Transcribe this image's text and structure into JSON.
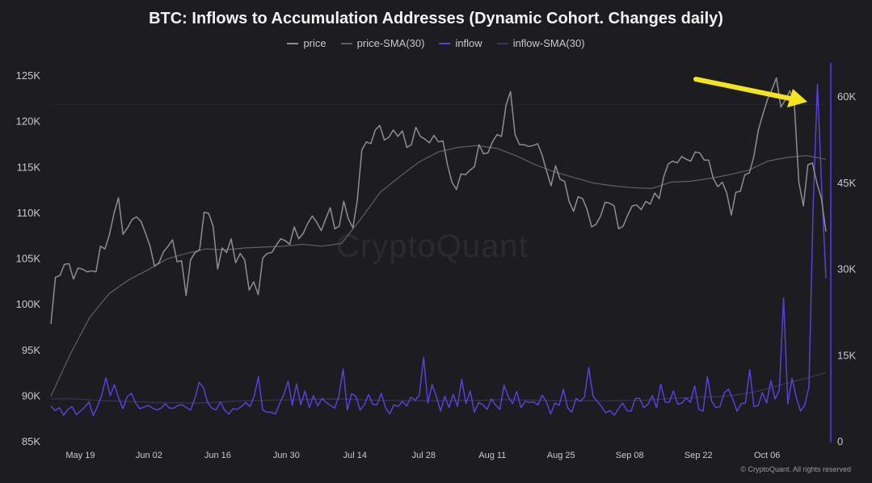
{
  "chart_data": {
    "type": "line",
    "title": "BTC: Inflows to Accumulation Addresses (Dynamic Cohort. Changes daily)",
    "legend": [
      "price",
      "price-SMA(30)",
      "inflow",
      "inflow-SMA(30)"
    ],
    "x_ticks": [
      "May 19",
      "Jun 02",
      "Jun 16",
      "Jun 30",
      "Jul 14",
      "Jul 28",
      "Aug 11",
      "Aug 25",
      "Sep 08",
      "Sep 22",
      "Oct 06"
    ],
    "x_range": [
      "2025-05-13",
      "2025-10-18"
    ],
    "y_left": {
      "ticks": [
        "125K",
        "120K",
        "115K",
        "110K",
        "105K",
        "100K",
        "95K",
        "90K",
        "85K"
      ],
      "min": 85000,
      "max": 125000
    },
    "y_right": {
      "ticks": [
        "60K",
        "45K",
        "30K",
        "15K",
        "0"
      ],
      "min": 0,
      "max": 60000
    },
    "series": [
      {
        "name": "price",
        "axis": "left",
        "color": "#8d8d92",
        "values": [
          97800,
          102900,
          103100,
          104300,
          104400,
          102700,
          103900,
          103800,
          103500,
          103600,
          103500,
          106300,
          106000,
          107600,
          109900,
          111600,
          107600,
          108300,
          109200,
          109500,
          109000,
          107700,
          106300,
          104100,
          104500,
          105700,
          106300,
          107000,
          104600,
          104700,
          100900,
          104800,
          105600,
          105900,
          110000,
          109900,
          108500,
          103800,
          106100,
          105600,
          107100,
          104500,
          105500,
          104800,
          101500,
          102400,
          101000,
          105000,
          105500,
          105600,
          106400,
          107100,
          106900,
          106500,
          108400,
          107100,
          107700,
          108800,
          109600,
          108900,
          108000,
          109300,
          110500,
          108200,
          108500,
          111200,
          109300,
          108300,
          111300,
          116800,
          117700,
          117500,
          119000,
          119500,
          117900,
          118200,
          119000,
          118300,
          118900,
          117100,
          117400,
          119300,
          118300,
          118000,
          117600,
          118400,
          117700,
          117800,
          115200,
          113300,
          112500,
          114200,
          114100,
          114600,
          115000,
          117400,
          116400,
          116500,
          117700,
          118500,
          118300,
          121700,
          123200,
          118500,
          117400,
          117400,
          117200,
          117300,
          117500,
          116300,
          114500,
          112900,
          115100,
          113600,
          113400,
          111200,
          110100,
          111700,
          111500,
          110300,
          108400,
          108700,
          109600,
          111100,
          111000,
          110700,
          108200,
          108500,
          109700,
          110700,
          110800,
          110300,
          111200,
          110900,
          112100,
          111500,
          113900,
          115300,
          115600,
          115400,
          116100,
          115800,
          115600,
          116600,
          116500,
          115700,
          115700,
          113700,
          112800,
          113300,
          112100,
          109700,
          112200,
          112300,
          114100,
          114300,
          116100,
          119000,
          120700,
          122300,
          123400,
          124700,
          121500,
          122300,
          123300,
          121700,
          113300,
          110700,
          115200,
          115400,
          113200,
          111500,
          107900
        ]
      },
      {
        "name": "price-SMA(30)",
        "axis": "left",
        "color": "#5f5f65",
        "values": [
          89900,
          94500,
          98500,
          101100,
          102600,
          103700,
          104900,
          105500,
          106000,
          105900,
          106100,
          106200,
          106300,
          106500,
          106300,
          106600,
          109300,
          112200,
          113900,
          115500,
          116600,
          117100,
          117300,
          117000,
          116200,
          115200,
          114400,
          113800,
          113200,
          112900,
          112700,
          112600,
          113300,
          113400,
          113700,
          114100,
          114600,
          115600,
          116000,
          116200,
          115800
        ]
      },
      {
        "name": "inflow",
        "axis": "right",
        "color": "#5b3fd8",
        "values": [
          6100,
          5300,
          5800,
          4500,
          5500,
          6000,
          4600,
          5200,
          5900,
          6800,
          4400,
          6000,
          8000,
          11000,
          7900,
          9800,
          7500,
          5600,
          7700,
          8300,
          6600,
          5600,
          5900,
          6200,
          5700,
          5400,
          5700,
          6500,
          5700,
          5700,
          6200,
          6300,
          5800,
          5400,
          7400,
          10200,
          9300,
          6700,
          5700,
          5400,
          6800,
          5400,
          4700,
          5600,
          5500,
          6000,
          6700,
          6000,
          7800,
          11200,
          5400,
          5000,
          5000,
          4700,
          6500,
          8100,
          10400,
          6200,
          9900,
          6300,
          8700,
          5800,
          7900,
          6100,
          7400,
          6700,
          6200,
          5700,
          7800,
          12500,
          5400,
          8200,
          7800,
          5400,
          6300,
          8100,
          6400,
          6300,
          8300,
          5800,
          4700,
          6300,
          6000,
          6900,
          6100,
          7600,
          7100,
          8000,
          14600,
          6600,
          9800,
          7800,
          5200,
          7800,
          5800,
          8100,
          6000,
          10700,
          6500,
          8700,
          5000,
          6700,
          6300,
          5500,
          7300,
          6300,
          5500,
          9700,
          7700,
          6500,
          8600,
          5800,
          6900,
          6700,
          6800,
          6300,
          8000,
          6800,
          4700,
          6600,
          6200,
          9000,
          5800,
          5000,
          7400,
          6900,
          7700,
          12800,
          7800,
          6900,
          6000,
          4900,
          5300,
          4500,
          5600,
          6600,
          5300,
          5200,
          7400,
          7400,
          5800,
          6400,
          7900,
          5800,
          9900,
          6800,
          6700,
          8700,
          6400,
          6600,
          7500,
          6700,
          9600,
          5500,
          5200,
          11200,
          7000,
          5800,
          6000,
          8400,
          9000,
          7300,
          5200,
          6500,
          6600,
          12400,
          6000,
          6200,
          8400,
          6600,
          10500,
          7300,
          8900,
          24900,
          6500,
          10900,
          7600,
          5200,
          6300,
          9400,
          41300,
          62000,
          43900,
          28300
        ]
      },
      {
        "name": "inflow-SMA(30)",
        "axis": "right",
        "color": "#3a3557",
        "values": [
          7300,
          7350,
          7200,
          7000,
          6900,
          6800,
          6700,
          6650,
          6600,
          6700,
          6900,
          7000,
          7100,
          7150,
          7200,
          7300,
          7300,
          7200,
          7100,
          7050,
          7000,
          7000,
          7000,
          7050,
          7100,
          7200,
          7150,
          7100,
          7050,
          7000,
          7000,
          7000,
          7050,
          7100,
          7300,
          7500,
          7600,
          7700,
          8000,
          8500,
          9300,
          10200,
          11000,
          11900
        ]
      }
    ]
  },
  "watermark": "CryptoQuant",
  "footer": "© CryptoQuant. All rights reserved",
  "annotation": {
    "type": "arrow",
    "color": "#f2e51f"
  }
}
